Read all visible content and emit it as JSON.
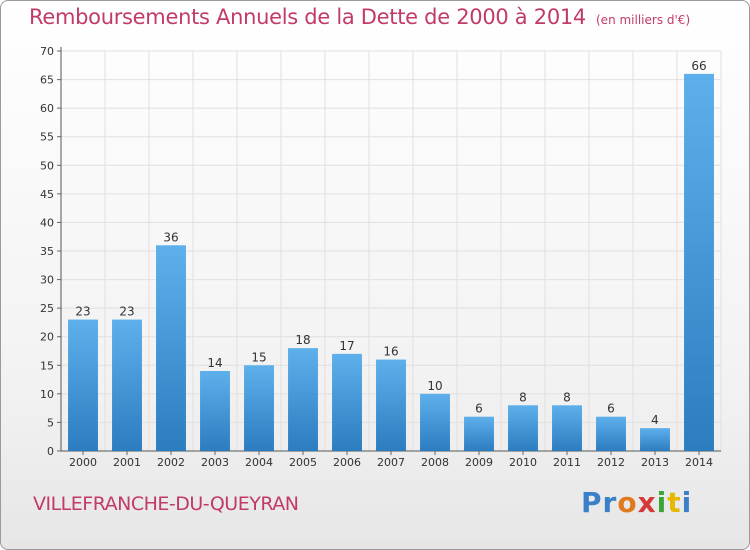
{
  "title": "Remboursements Annuels de la Dette de 2000 à 2014",
  "subtitle": "(en milliers d'€)",
  "commune": "VILLEFRANCHE-DU-QUEYRAN",
  "brand": "Proxiti",
  "colors": {
    "title": "#c23a6a",
    "bar_light": "#5eb0ec",
    "bar_dark": "#2c7cc0",
    "grid": "#e0e0e0",
    "axis_text": "#333333"
  },
  "chart_data": {
    "type": "bar",
    "title": "Remboursements Annuels de la Dette de 2000 à 2014",
    "xlabel": "",
    "ylabel": "",
    "ylim": [
      0,
      70
    ],
    "yticks": [
      0,
      5,
      10,
      15,
      20,
      25,
      30,
      35,
      40,
      45,
      50,
      55,
      60,
      65,
      70
    ],
    "grid": true,
    "categories": [
      "2000",
      "2001",
      "2002",
      "2003",
      "2004",
      "2005",
      "2006",
      "2007",
      "2008",
      "2009",
      "2010",
      "2011",
      "2012",
      "2013",
      "2014"
    ],
    "values": [
      23,
      23,
      36,
      14,
      15,
      18,
      17,
      16,
      10,
      6,
      8,
      8,
      6,
      4,
      66
    ]
  }
}
